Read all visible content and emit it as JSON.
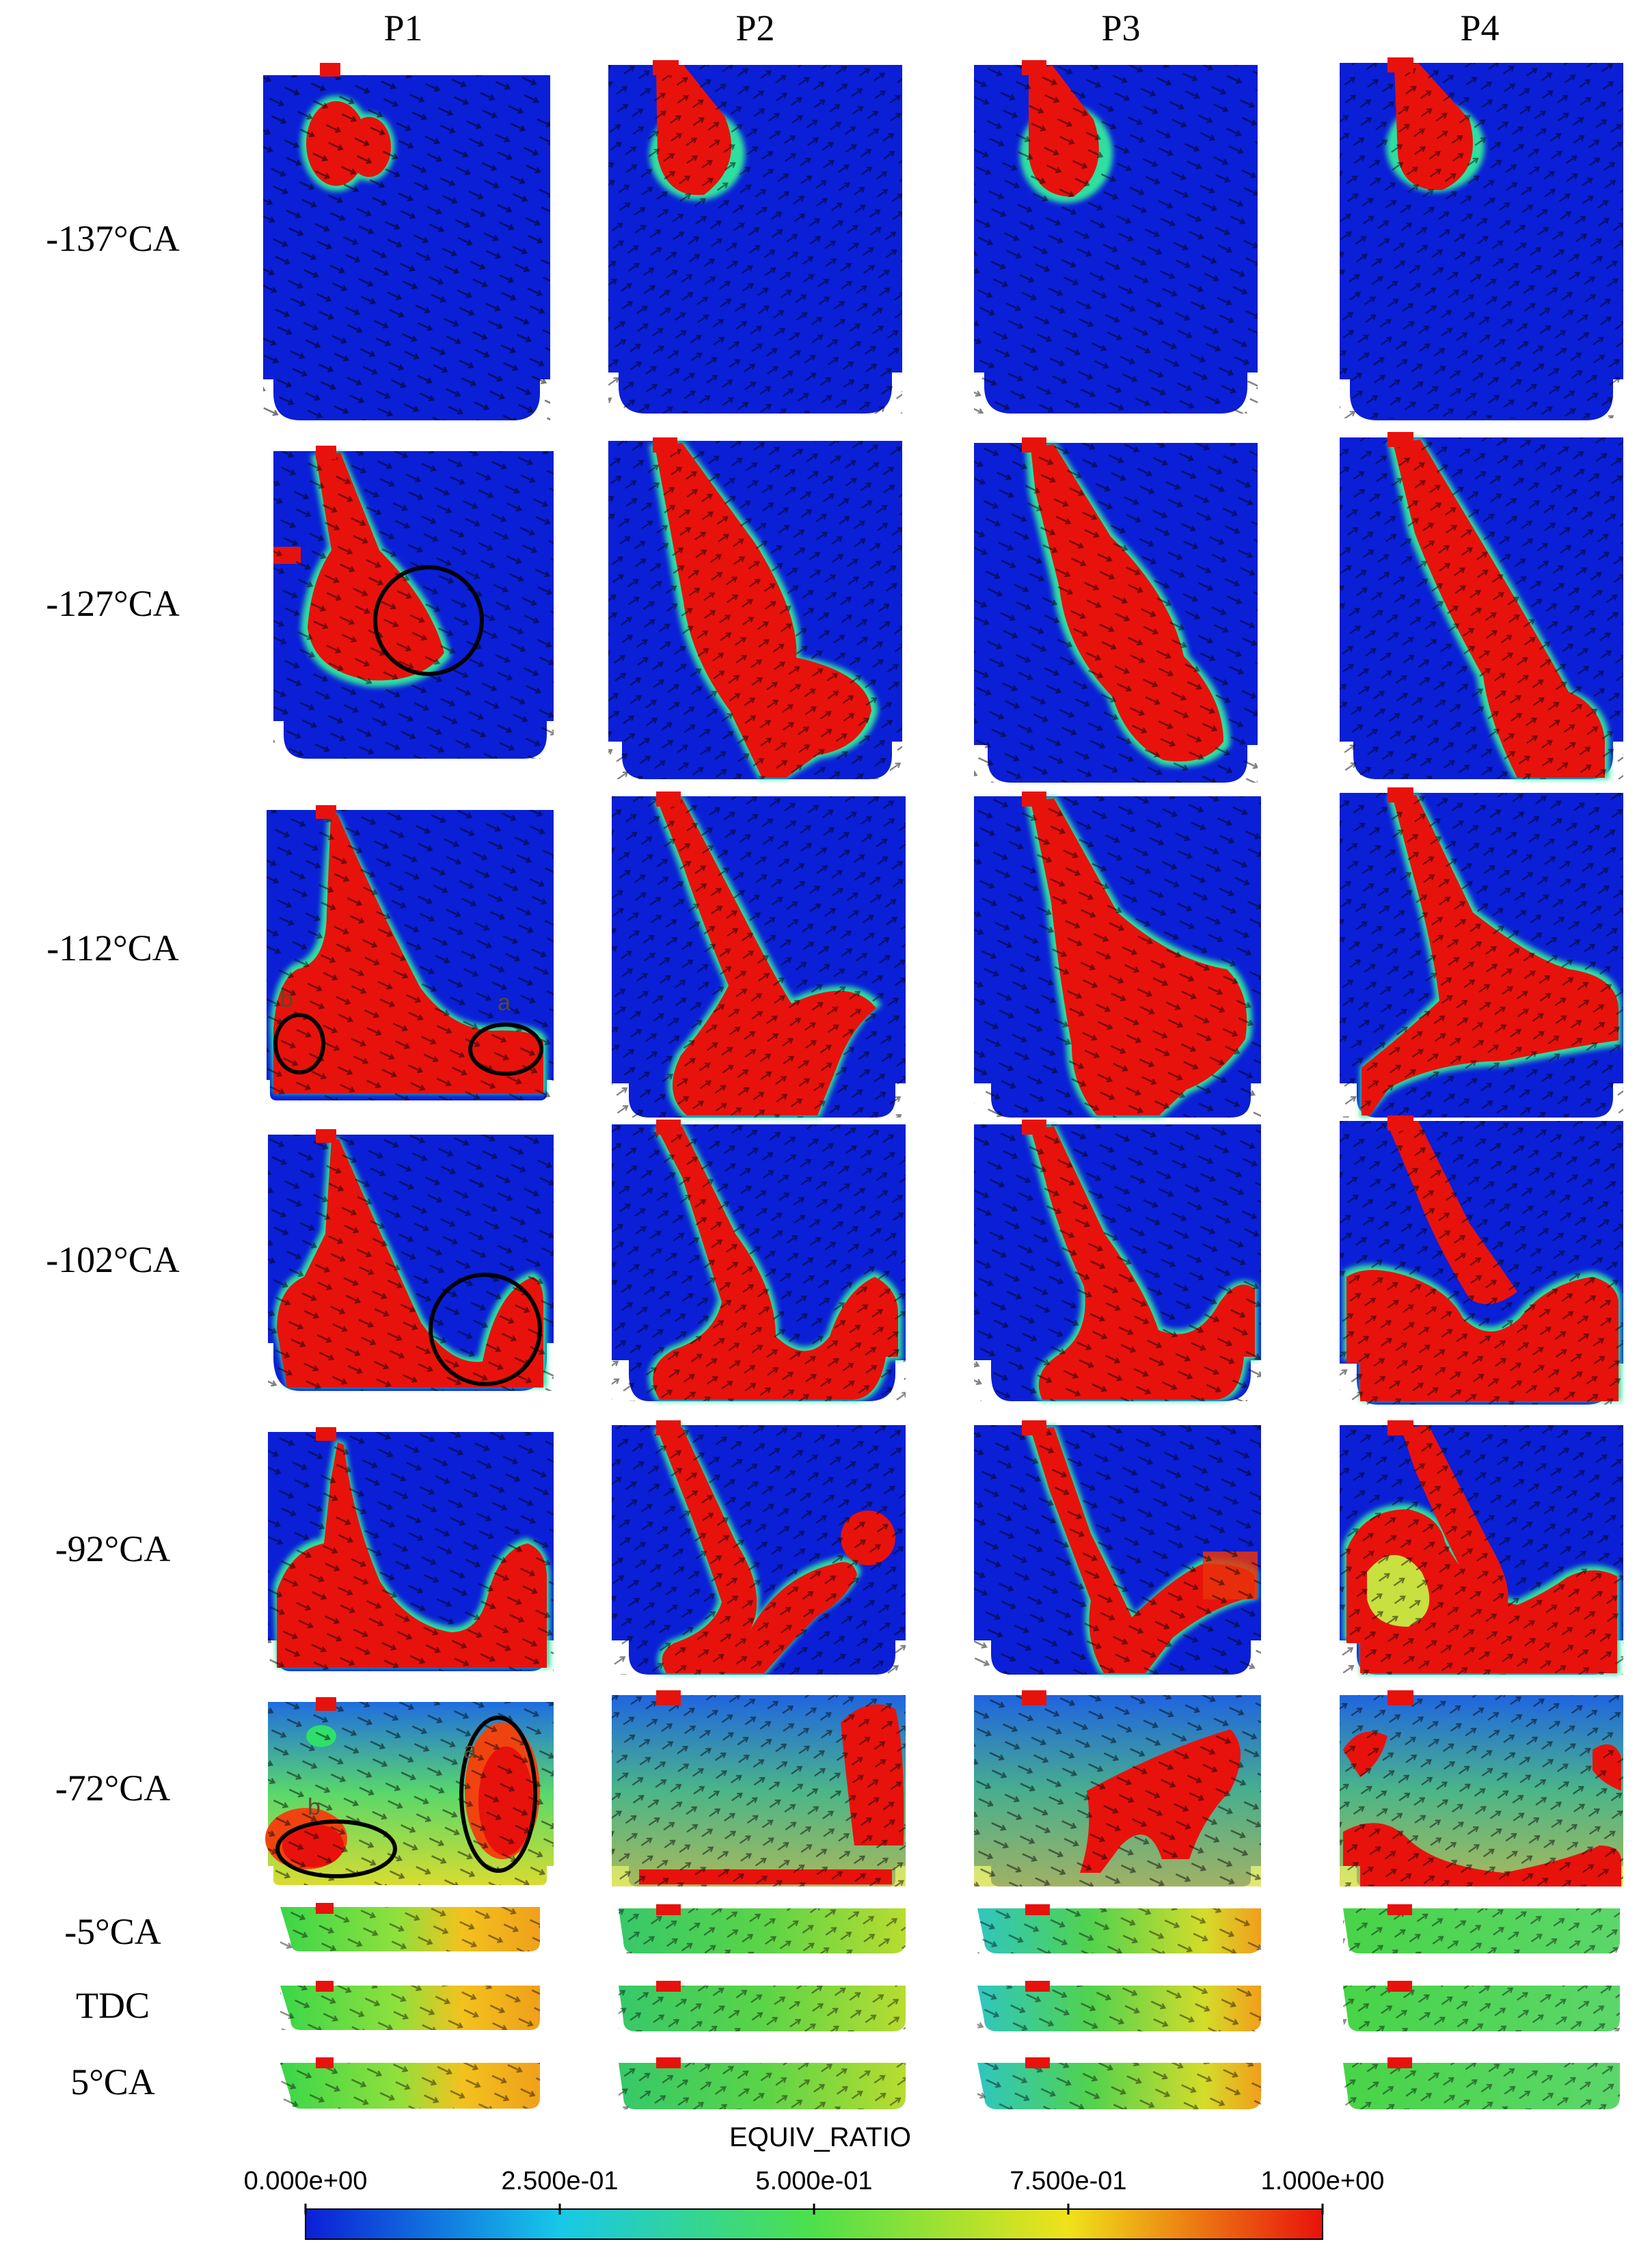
{
  "columns": [
    "P1",
    "P2",
    "P3",
    "P4"
  ],
  "rows": [
    "-137°CA",
    "-127°CA",
    "-112°CA",
    "-102°CA",
    "-92°CA",
    "-72°CA",
    "-5°CA",
    "TDC",
    "5°CA"
  ],
  "annotations": {
    "label_a": "a",
    "label_b": "b"
  },
  "colorbar": {
    "title": "EQUIV_RATIO",
    "ticks": [
      "0.000e+00",
      "2.500e-01",
      "5.000e-01",
      "7.500e-01",
      "1.000e+00"
    ],
    "colors": [
      "#0b1fd6",
      "#17c8e8",
      "#4ee04a",
      "#f0e21a",
      "#e8120c"
    ]
  }
}
